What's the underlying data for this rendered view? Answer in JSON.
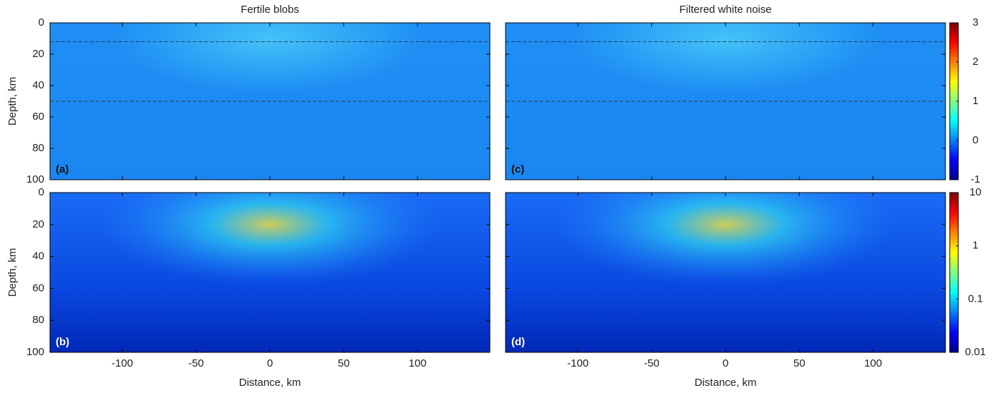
{
  "chart_data": [
    {
      "type": "heatmap",
      "title": "Fertile blobs",
      "panel_label": "(a)",
      "ylabel": "Depth, km",
      "xlim": [
        -149,
        149
      ],
      "xticks": [
        -100,
        -50,
        0,
        50,
        100
      ],
      "ylim": [
        100,
        0
      ],
      "yticks": [
        0,
        20,
        40,
        60,
        80,
        100
      ]
    },
    {
      "type": "heatmap",
      "panel_label": "(b)",
      "xlabel": "Distance, km",
      "ylabel": "Depth, km",
      "xlim": [
        -149,
        149
      ],
      "xticks": [
        -100,
        -50,
        0,
        50,
        100
      ],
      "ylim": [
        100,
        0
      ],
      "yticks": [
        0,
        20,
        40,
        60,
        80,
        100
      ]
    },
    {
      "type": "heatmap",
      "title": "Filtered white noise",
      "panel_label": "(c)",
      "xlim": [
        -149,
        149
      ],
      "xticks": [
        -100,
        -50,
        0,
        50,
        100
      ],
      "ylim": [
        100,
        0
      ],
      "yticks": [
        0,
        20,
        40,
        60,
        80,
        100
      ],
      "colorbar": {
        "lim": [
          -1,
          3
        ],
        "ticks": [
          -1,
          0,
          1,
          2,
          3
        ]
      }
    },
    {
      "type": "heatmap",
      "panel_label": "(d)",
      "xlabel": "Distance, km",
      "xlim": [
        -149,
        149
      ],
      "xticks": [
        -100,
        -50,
        0,
        50,
        100
      ],
      "ylim": [
        100,
        0
      ],
      "yticks": [
        0,
        20,
        40,
        60,
        80,
        100
      ],
      "colorbar": {
        "lim": [
          0.01,
          10
        ],
        "ticks": [
          0.01,
          0.1,
          1,
          10
        ],
        "log": true
      }
    }
  ]
}
